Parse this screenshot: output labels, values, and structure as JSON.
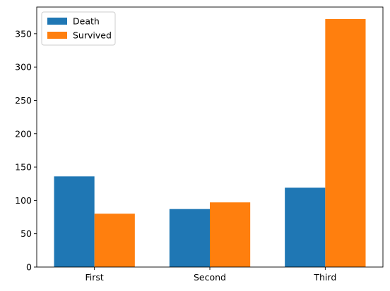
{
  "chart_data": {
    "type": "bar",
    "categories": [
      "First",
      "Second",
      "Third"
    ],
    "series": [
      {
        "name": "Death",
        "values": [
          136,
          87,
          119
        ],
        "color": "#1f77b4"
      },
      {
        "name": "Survived",
        "values": [
          80,
          97,
          372
        ],
        "color": "#ff7f0e"
      }
    ],
    "ylim": [
      0,
      390
    ],
    "yticks": [
      0,
      50,
      100,
      150,
      200,
      250,
      300,
      350
    ],
    "legend_position": "top-left",
    "grid": false
  }
}
